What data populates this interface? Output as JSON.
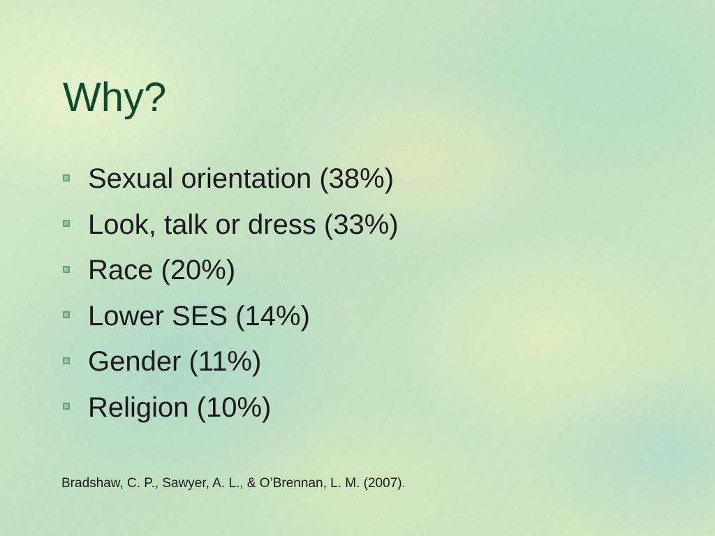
{
  "slide": {
    "title": "Why?",
    "bullets": [
      "Sexual orientation (38%)",
      "Look, talk or dress (33%)",
      "Race (20%)",
      "Lower SES (14%)",
      "Gender (11%)",
      "Religion (10%)"
    ],
    "citation": "Bradshaw, C. P., Sawyer, A. L., & O’Brennan, L. M. (2007)."
  },
  "colors": {
    "title": "#0b4d2a",
    "text": "#1a1a1a",
    "bullet_marker": "#6e9d7a",
    "background": "#c9e4bf"
  },
  "icons": {
    "bullet": "square-bullet-icon"
  }
}
